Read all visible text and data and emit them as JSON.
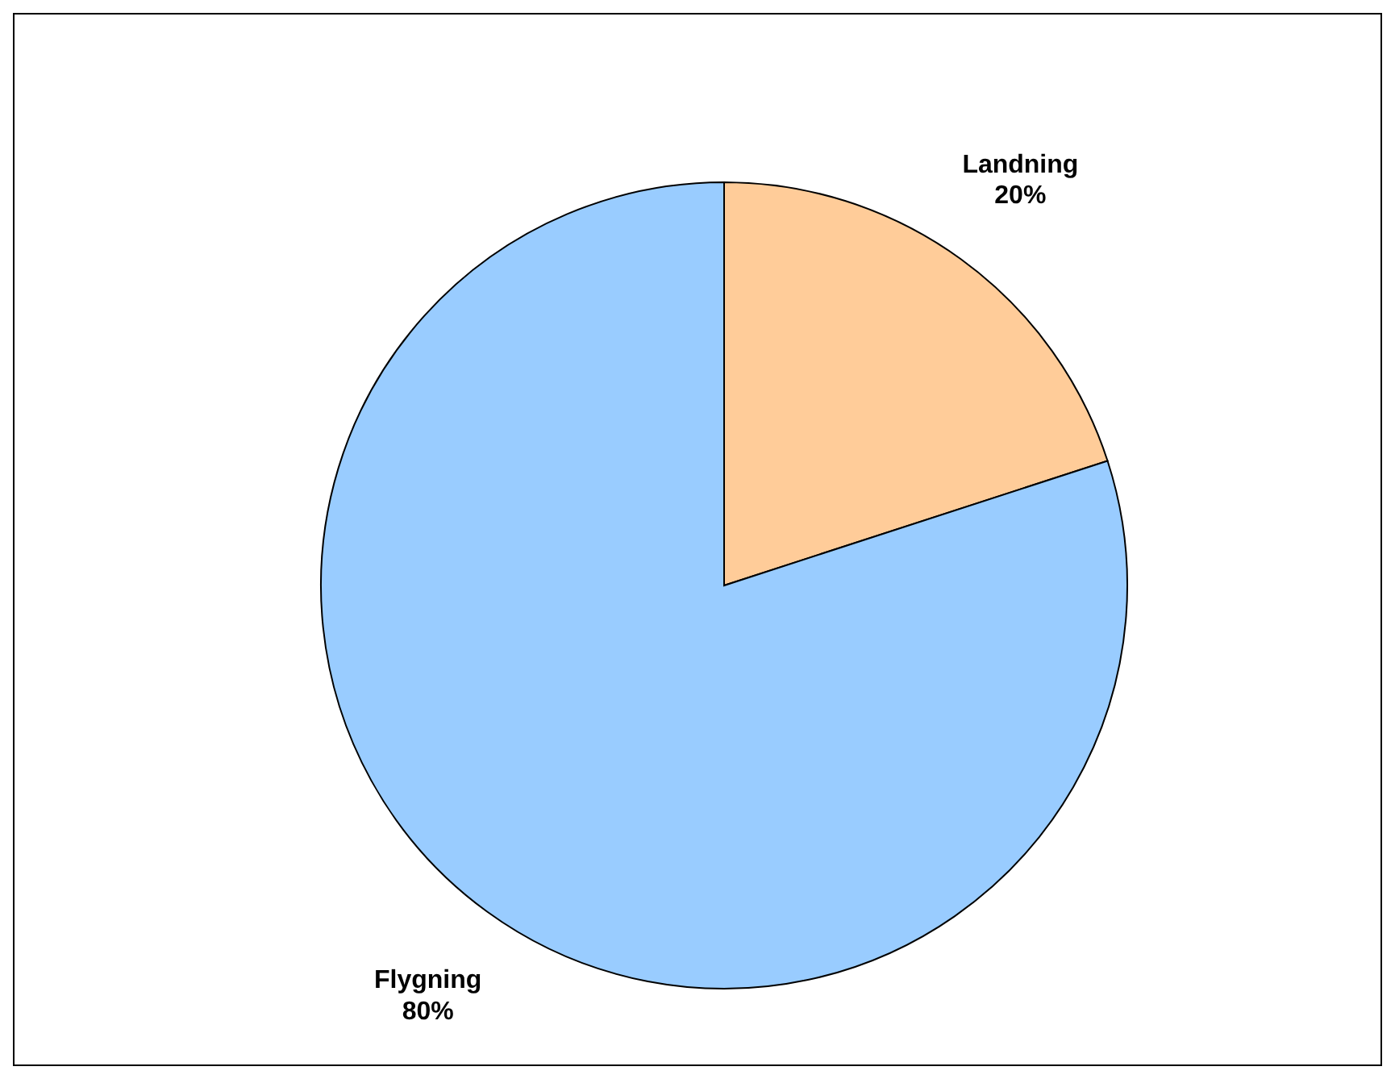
{
  "chart_data": {
    "type": "pie",
    "categories": [
      "Landning",
      "Flygning"
    ],
    "values": [
      20,
      80
    ],
    "colors": [
      "#ffcc99",
      "#99ccff"
    ],
    "value_labels": [
      "20%",
      "80%"
    ]
  }
}
